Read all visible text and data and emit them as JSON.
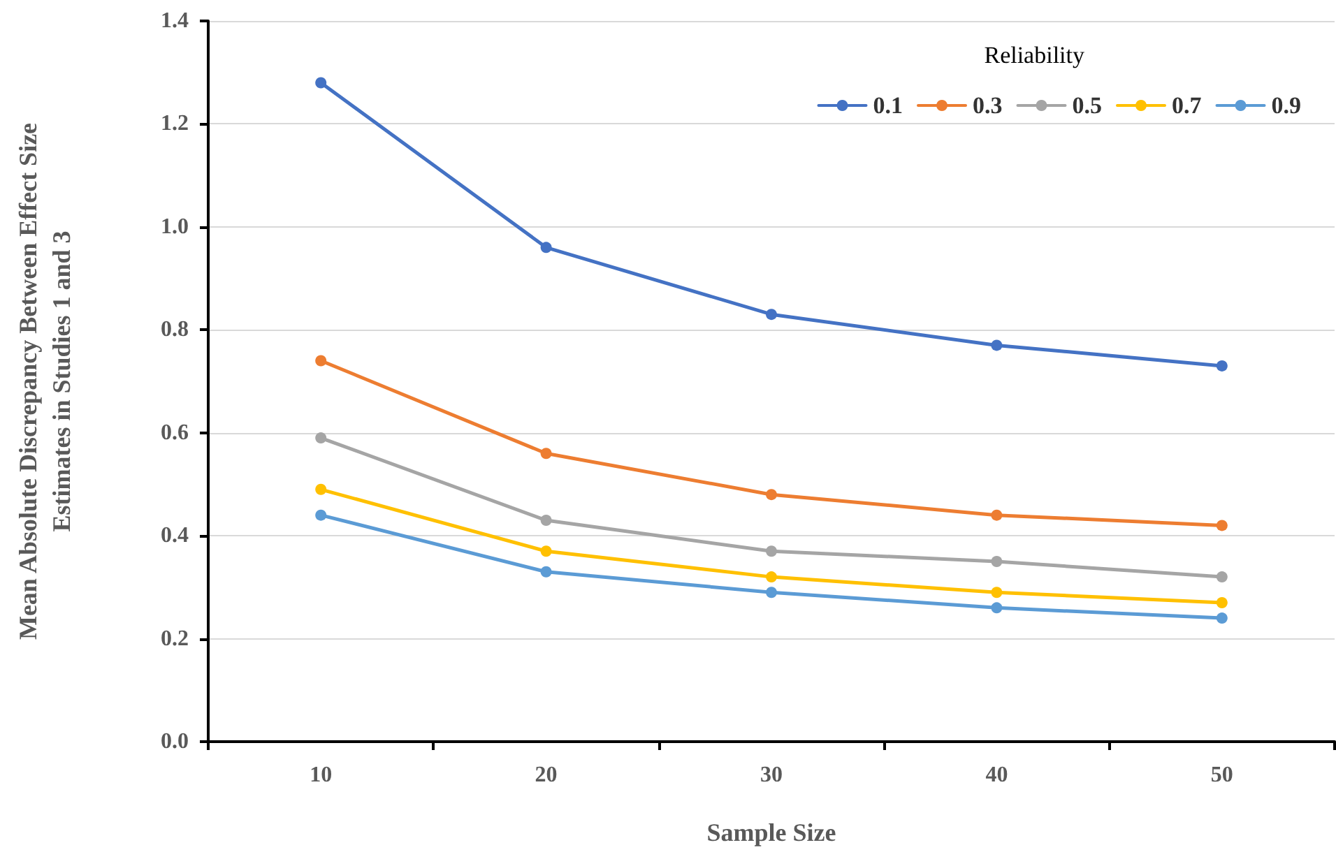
{
  "chart_data": {
    "type": "line",
    "xlabel": "Sample Size",
    "ylabel": "Mean Absolute Discrepancy Between Effect Size\nEstimates in Studies 1 and 3",
    "legend_title": "Reliability",
    "categories": [
      "10",
      "20",
      "30",
      "40",
      "50"
    ],
    "series": [
      {
        "name": "0.1",
        "color": "#4472c4",
        "values": [
          1.28,
          0.96,
          0.83,
          0.77,
          0.73
        ]
      },
      {
        "name": "0.3",
        "color": "#ed7d31",
        "values": [
          0.74,
          0.56,
          0.48,
          0.44,
          0.42
        ]
      },
      {
        "name": "0.5",
        "color": "#a5a5a5",
        "values": [
          0.59,
          0.43,
          0.37,
          0.35,
          0.32
        ]
      },
      {
        "name": "0.7",
        "color": "#ffc000",
        "values": [
          0.49,
          0.37,
          0.32,
          0.29,
          0.27
        ]
      },
      {
        "name": "0.9",
        "color": "#5b9bd5",
        "values": [
          0.44,
          0.33,
          0.29,
          0.26,
          0.24
        ]
      }
    ],
    "ylim": [
      0,
      1.4
    ],
    "yticks": [
      {
        "value": 0,
        "label": "0.0"
      },
      0.2,
      0.4,
      0.6,
      0.8,
      {
        "value": 1,
        "label": "1.0"
      },
      1.2,
      1.4
    ],
    "grid": "y",
    "legend": "top right",
    "marker": "circle",
    "line_style": "solid"
  }
}
